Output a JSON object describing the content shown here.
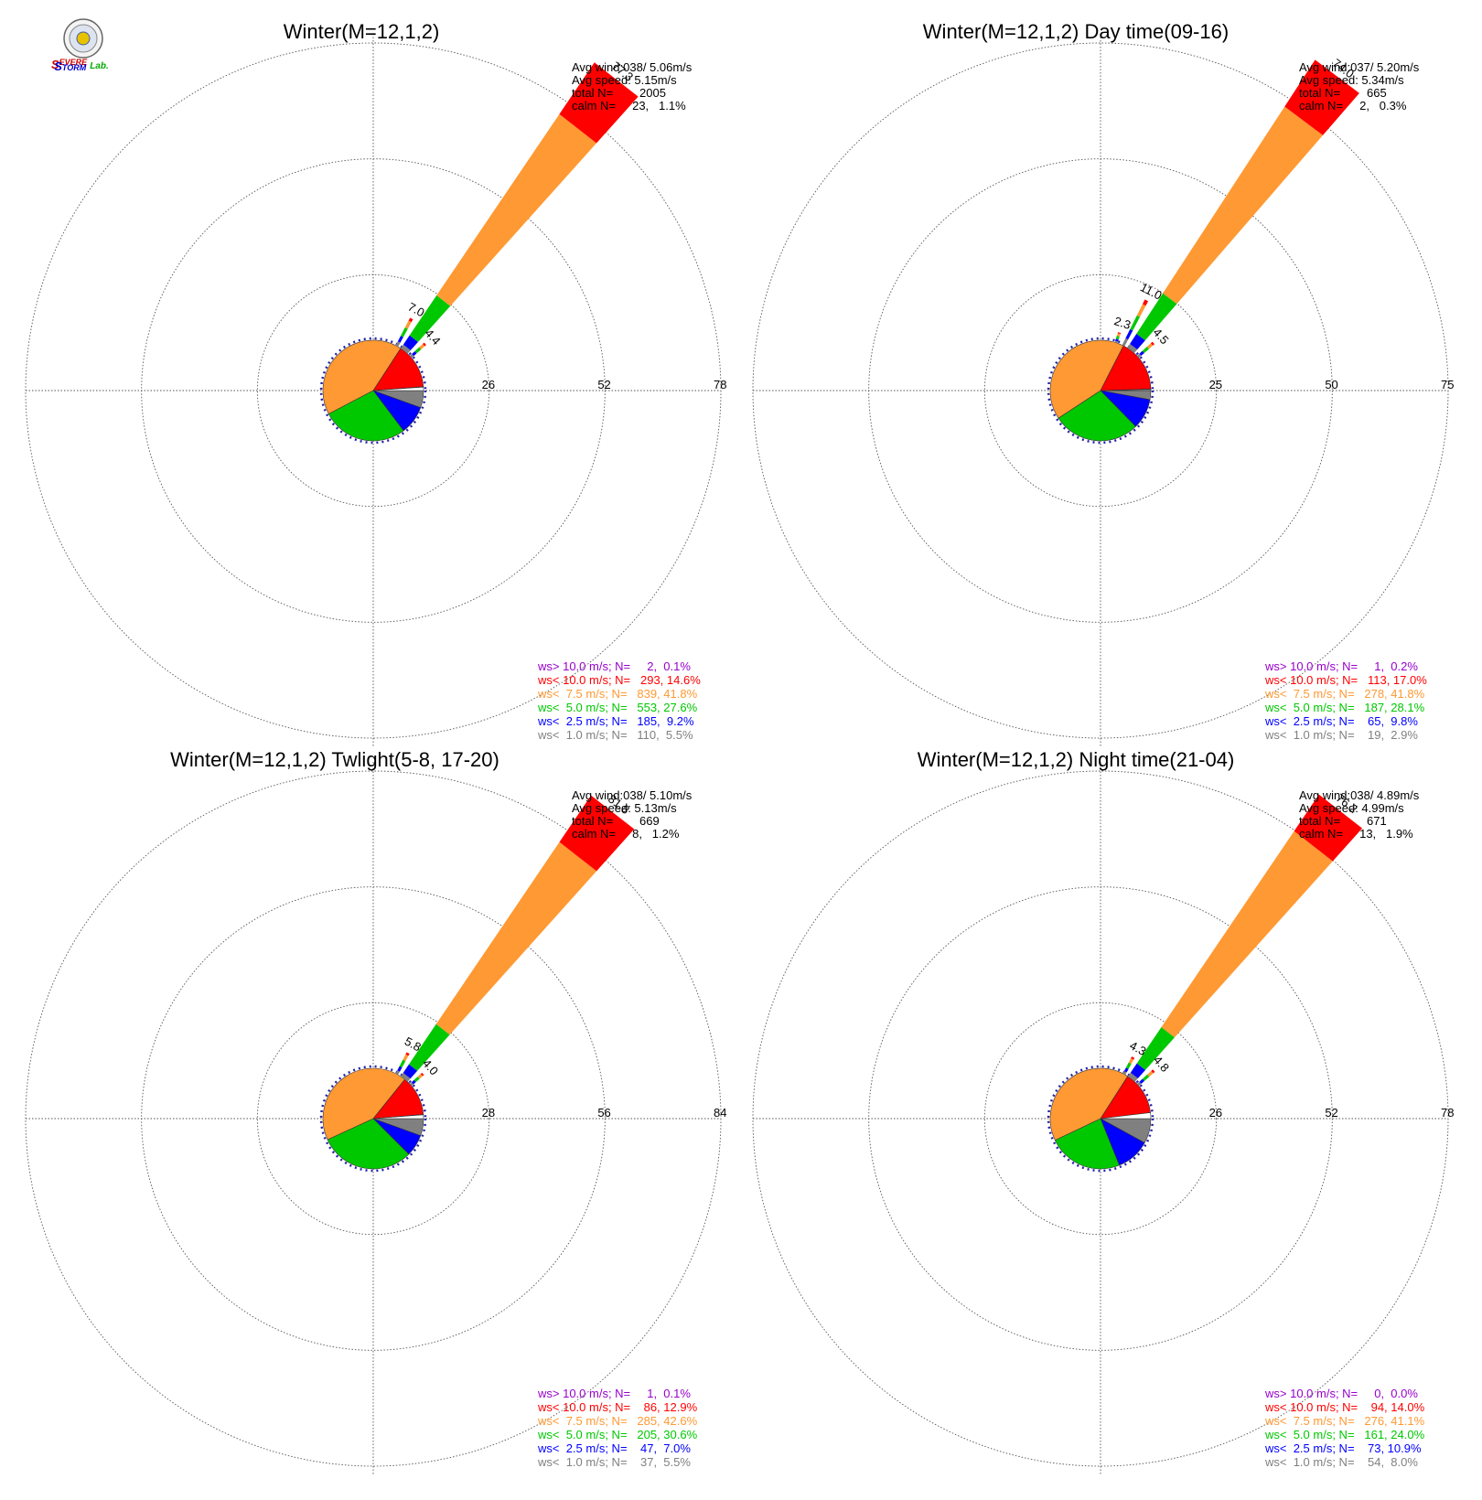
{
  "logo": {
    "text_parts": [
      "S",
      "EVERE",
      "S",
      "TORM",
      "Lab."
    ],
    "colors": {
      "severe": "#cc0000",
      "storm": "#0000cc",
      "lab": "#00aa00"
    }
  },
  "colors": {
    "calm_bar": "#ffffff",
    "ws_lt_1": "#808080",
    "ws_lt_2_5": "#0000ff",
    "ws_lt_5": "#00c800",
    "ws_lt_7_5": "#ff9933",
    "ws_lt_10": "#ff0000",
    "ws_gt_10": "#9900cc",
    "grid": "#555555"
  },
  "chart_data": [
    {
      "type": "pie",
      "title": "Winter(M=12,1,2)",
      "stats": {
        "avg_wind_label": "Avg wind:",
        "avg_wind": "038/ 5.06m/s",
        "avg_speed_label": "Avg speed:",
        "avg_speed": "5.15m/s",
        "total_label": "total N=",
        "total": "2005",
        "calm_label": "calm N=",
        "calm": "23,   1.1%"
      },
      "rings": [
        26,
        52,
        78
      ],
      "rmax": 78,
      "main_direction_deg": 38,
      "main_segments": [
        1.0,
        2.5,
        10.8,
        49.0,
        14.0
      ],
      "main_label": "77.3",
      "minor_bars": [
        {
          "dir_deg": 28,
          "length": 7.0,
          "label": "7.0"
        },
        {
          "dir_deg": 48,
          "length": 4.4,
          "label": "4.4"
        }
      ],
      "pie": [
        {
          "name": "ws< 1.0 m/s",
          "value": 5.5
        },
        {
          "name": "ws< 2.5 m/s",
          "value": 9.2
        },
        {
          "name": "ws< 5.0 m/s",
          "value": 27.6
        },
        {
          "name": "ws< 7.5 m/s",
          "value": 41.8
        },
        {
          "name": "ws< 10.0 m/s",
          "value": 14.6
        },
        {
          "name": "ws> 10.0 m/s",
          "value": 0.1
        },
        {
          "name": "calm",
          "value": 1.1
        }
      ],
      "legend": [
        {
          "text": "ws> 10.0 m/s; N=     2,  0.1%",
          "color_key": "ws_gt_10"
        },
        {
          "text": "ws< 10.0 m/s; N=   293, 14.6%",
          "color_key": "ws_lt_10"
        },
        {
          "text": "ws<  7.5 m/s; N=   839, 41.8%",
          "color_key": "ws_lt_7_5"
        },
        {
          "text": "ws<  5.0 m/s; N=   553, 27.6%",
          "color_key": "ws_lt_5"
        },
        {
          "text": "ws<  2.5 m/s; N=   185,  9.2%",
          "color_key": "ws_lt_2_5"
        },
        {
          "text": "ws<  1.0 m/s; N=   110,  5.5%",
          "color_key": "ws_lt_1"
        }
      ]
    },
    {
      "type": "pie",
      "title": "Winter(M=12,1,2) Day time(09-16)",
      "stats": {
        "avg_wind_label": "Avg wind:",
        "avg_wind": "037/ 5.20m/s",
        "avg_speed_label": "Avg speed:",
        "avg_speed": "5.34m/s",
        "total_label": "total N=",
        "total": "665",
        "calm_label": "calm N=",
        "calm": "2,   0.3%"
      },
      "rings": [
        25,
        50,
        75
      ],
      "rmax": 75,
      "main_direction_deg": 37,
      "main_segments": [
        1.0,
        2.6,
        10.4,
        48.0,
        12.0
      ],
      "main_label": "74.0",
      "minor_bars": [
        {
          "dir_deg": 27,
          "length": 11.0,
          "label": "11.0"
        },
        {
          "dir_deg": 18,
          "length": 2.3,
          "label": "2.3"
        },
        {
          "dir_deg": 48,
          "length": 4.5,
          "label": "4.5"
        }
      ],
      "pie": [
        {
          "name": "ws< 1.0 m/s",
          "value": 2.9
        },
        {
          "name": "ws< 2.5 m/s",
          "value": 9.8
        },
        {
          "name": "ws< 5.0 m/s",
          "value": 28.1
        },
        {
          "name": "ws< 7.5 m/s",
          "value": 41.8
        },
        {
          "name": "ws< 10.0 m/s",
          "value": 17.0
        },
        {
          "name": "ws> 10.0 m/s",
          "value": 0.2
        },
        {
          "name": "calm",
          "value": 0.3
        }
      ],
      "legend": [
        {
          "text": "ws> 10.0 m/s; N=     1,  0.2%",
          "color_key": "ws_gt_10"
        },
        {
          "text": "ws< 10.0 m/s; N=   113, 17.0%",
          "color_key": "ws_lt_10"
        },
        {
          "text": "ws<  7.5 m/s; N=   278, 41.8%",
          "color_key": "ws_lt_7_5"
        },
        {
          "text": "ws<  5.0 m/s; N=   187, 28.1%",
          "color_key": "ws_lt_5"
        },
        {
          "text": "ws<  2.5 m/s; N=    65,  9.8%",
          "color_key": "ws_lt_2_5"
        },
        {
          "text": "ws<  1.0 m/s; N=    19,  2.9%",
          "color_key": "ws_lt_1"
        }
      ]
    },
    {
      "type": "pie",
      "title": "Winter(M=12,1,2) Twlight(5-8, 17-20)",
      "stats": {
        "avg_wind_label": "Avg wind:",
        "avg_wind": "038/ 5.10m/s",
        "avg_speed_label": "Avg speed:",
        "avg_speed": "5.13m/s",
        "total_label": "total N=",
        "total": "669",
        "calm_label": "calm N=",
        "calm": "8,   1.2%"
      },
      "rings": [
        28,
        56,
        84
      ],
      "rmax": 84,
      "main_direction_deg": 38,
      "main_segments": [
        1.0,
        2.5,
        11.7,
        53.0,
        13.6
      ],
      "main_label": "81.8",
      "minor_bars": [
        {
          "dir_deg": 28,
          "length": 5.8,
          "label": "5.8"
        },
        {
          "dir_deg": 48,
          "length": 4.0,
          "label": "4.0"
        }
      ],
      "pie": [
        {
          "name": "ws< 1.0 m/s",
          "value": 5.5
        },
        {
          "name": "ws< 2.5 m/s",
          "value": 7.0
        },
        {
          "name": "ws< 5.0 m/s",
          "value": 30.6
        },
        {
          "name": "ws< 7.5 m/s",
          "value": 42.6
        },
        {
          "name": "ws< 10.0 m/s",
          "value": 12.9
        },
        {
          "name": "ws> 10.0 m/s",
          "value": 0.1
        },
        {
          "name": "calm",
          "value": 1.2
        }
      ],
      "legend": [
        {
          "text": "ws> 10.0 m/s; N=     1,  0.1%",
          "color_key": "ws_gt_10"
        },
        {
          "text": "ws< 10.0 m/s; N=    86, 12.9%",
          "color_key": "ws_lt_10"
        },
        {
          "text": "ws<  7.5 m/s; N=   285, 42.6%",
          "color_key": "ws_lt_7_5"
        },
        {
          "text": "ws<  5.0 m/s; N=   205, 30.6%",
          "color_key": "ws_lt_5"
        },
        {
          "text": "ws<  2.5 m/s; N=    47,  7.0%",
          "color_key": "ws_lt_2_5"
        },
        {
          "text": "ws<  1.0 m/s; N=    37,  5.5%",
          "color_key": "ws_lt_1"
        }
      ]
    },
    {
      "type": "pie",
      "title": "Winter(M=12,1,2) Night time(21-04)",
      "stats": {
        "avg_wind_label": "Avg wind:",
        "avg_wind": "038/ 4.89m/s",
        "avg_speed_label": "Avg speed:",
        "avg_speed": "4.99m/s",
        "total_label": "total N=",
        "total": "671",
        "calm_label": "calm N=",
        "calm": "13,   1.9%"
      },
      "rings": [
        26,
        52,
        78
      ],
      "rmax": 78,
      "main_direction_deg": 38,
      "main_segments": [
        1.0,
        2.5,
        9.8,
        53.0,
        9.9
      ],
      "main_label": "76.2",
      "minor_bars": [
        {
          "dir_deg": 28,
          "length": 4.3,
          "label": "4.3"
        },
        {
          "dir_deg": 48,
          "length": 4.8,
          "label": "4.8"
        }
      ],
      "pie": [
        {
          "name": "ws< 1.0 m/s",
          "value": 8.0
        },
        {
          "name": "ws< 2.5 m/s",
          "value": 10.9
        },
        {
          "name": "ws< 5.0 m/s",
          "value": 24.0
        },
        {
          "name": "ws< 7.5 m/s",
          "value": 41.1
        },
        {
          "name": "ws< 10.0 m/s",
          "value": 14.0
        },
        {
          "name": "ws> 10.0 m/s",
          "value": 0.0
        },
        {
          "name": "calm",
          "value": 1.9
        }
      ],
      "legend": [
        {
          "text": "ws> 10.0 m/s; N=     0,  0.0%",
          "color_key": "ws_gt_10"
        },
        {
          "text": "ws< 10.0 m/s; N=    94, 14.0%",
          "color_key": "ws_lt_10"
        },
        {
          "text": "ws<  7.5 m/s; N=   276, 41.1%",
          "color_key": "ws_lt_7_5"
        },
        {
          "text": "ws<  5.0 m/s; N=   161, 24.0%",
          "color_key": "ws_lt_5"
        },
        {
          "text": "ws<  2.5 m/s; N=    73, 10.9%",
          "color_key": "ws_lt_2_5"
        },
        {
          "text": "ws<  1.0 m/s; N=    54,  8.0%",
          "color_key": "ws_lt_1"
        }
      ]
    }
  ]
}
